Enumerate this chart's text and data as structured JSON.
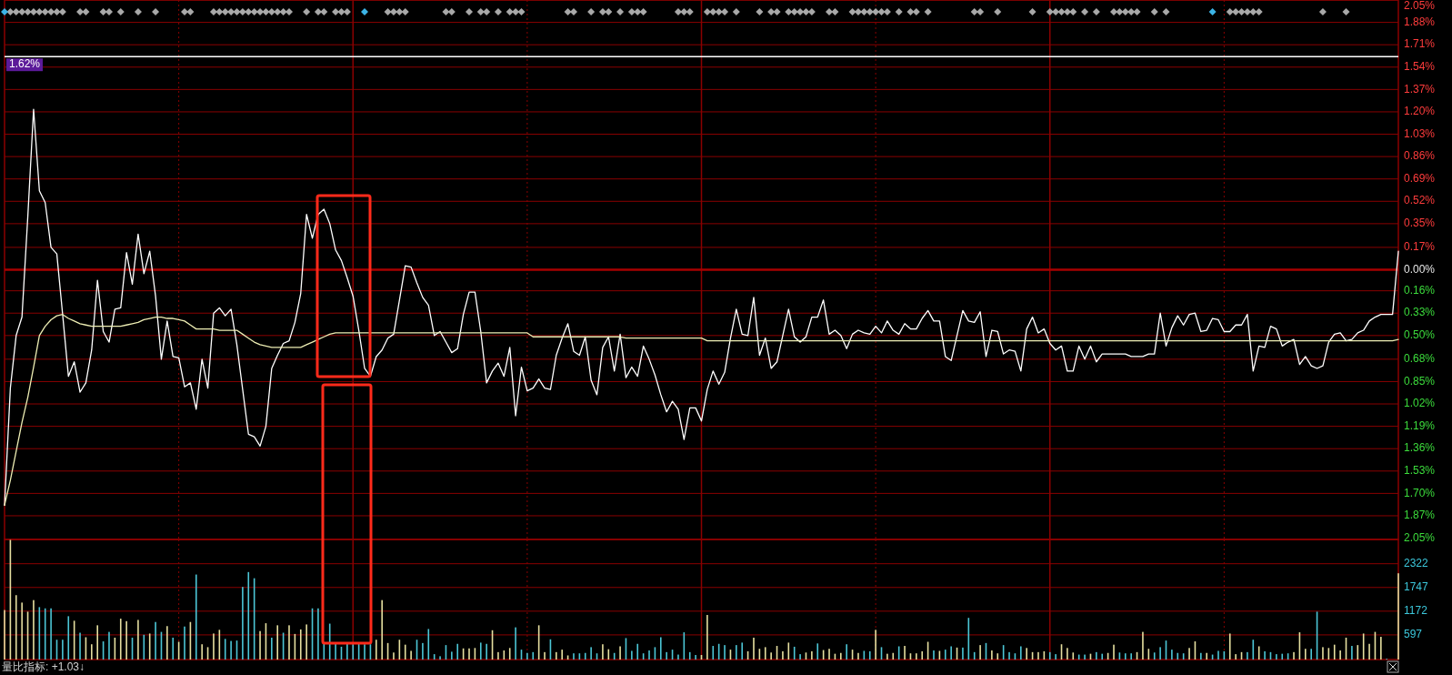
{
  "chart_data": [
    {
      "type": "line",
      "categories": [
        null,
        null,
        null,
        null,
        null,
        null,
        null,
        null,
        null,
        null,
        null,
        null,
        null,
        null,
        null,
        null,
        null,
        null,
        null,
        null,
        null,
        null,
        null,
        null,
        null,
        null,
        null,
        null,
        null,
        null,
        null,
        null,
        null,
        null,
        null,
        null,
        null,
        null,
        null,
        null,
        null,
        null,
        null,
        null,
        null,
        null,
        null,
        null,
        null,
        null,
        null,
        null,
        null,
        null,
        null,
        null,
        null,
        null,
        null,
        null,
        null,
        null,
        null,
        null,
        null,
        null,
        null,
        null,
        null,
        null,
        null,
        null,
        null,
        null,
        null,
        null,
        null,
        null,
        null,
        null,
        null,
        null,
        null,
        null,
        null,
        null,
        null,
        null,
        null,
        null,
        null,
        null,
        null,
        null,
        null,
        null,
        null,
        null,
        null,
        null,
        null,
        null,
        null,
        null,
        null,
        null,
        null,
        null,
        null,
        null,
        null,
        null,
        null,
        null,
        null,
        null,
        null,
        null,
        null,
        null,
        null,
        null,
        null,
        null,
        null,
        null,
        null,
        null,
        null,
        null,
        null,
        null,
        null,
        null,
        null,
        null,
        null,
        null,
        null,
        null,
        null,
        null,
        null,
        null,
        null,
        null,
        null,
        null,
        null,
        null,
        null,
        null,
        null,
        null,
        null,
        null,
        null,
        null,
        null,
        null,
        null,
        null,
        null,
        null,
        null,
        null,
        null,
        null,
        null,
        null,
        null,
        null,
        null,
        null,
        null,
        null,
        null,
        null,
        null,
        null,
        null,
        null,
        null,
        null,
        null,
        null,
        null,
        null,
        null,
        null,
        null,
        null,
        null,
        null,
        null,
        null,
        null,
        null,
        null,
        null,
        null,
        null,
        null,
        null,
        null,
        null,
        null,
        null,
        null,
        null,
        null,
        null,
        null,
        null,
        null,
        null,
        null,
        null,
        null,
        null,
        null,
        null,
        null,
        null,
        null,
        null,
        null,
        null,
        null,
        null,
        null,
        null,
        null,
        null,
        null,
        null,
        null,
        null,
        null,
        null,
        null
      ],
      "ylim": [
        -2.05,
        2.05
      ],
      "yticks": [
        {
          "value": 2.05,
          "label": "2.05%"
        },
        {
          "value": 1.88,
          "label": "1.88%"
        },
        {
          "value": 1.71,
          "label": "1.71%"
        },
        {
          "value": 1.54,
          "label": "1.54%"
        },
        {
          "value": 1.37,
          "label": "1.37%"
        },
        {
          "value": 1.2,
          "label": "1.20%"
        },
        {
          "value": 1.03,
          "label": "1.03%"
        },
        {
          "value": 0.86,
          "label": "0.86%"
        },
        {
          "value": 0.69,
          "label": "0.69%"
        },
        {
          "value": 0.52,
          "label": "0.52%"
        },
        {
          "value": 0.35,
          "label": "0.35%"
        },
        {
          "value": 0.17,
          "label": "0.17%"
        },
        {
          "value": 0,
          "label": "0.00%"
        },
        {
          "value": -0.16,
          "label": "0.16%"
        },
        {
          "value": -0.33,
          "label": "0.33%"
        },
        {
          "value": -0.5,
          "label": "0.50%"
        },
        {
          "value": -0.68,
          "label": "0.68%"
        },
        {
          "value": -0.85,
          "label": "0.85%"
        },
        {
          "value": -1.02,
          "label": "1.02%"
        },
        {
          "value": -1.19,
          "label": "1.19%"
        },
        {
          "value": -1.36,
          "label": "1.36%"
        },
        {
          "value": -1.53,
          "label": "1.53%"
        },
        {
          "value": -1.7,
          "label": "1.70%"
        },
        {
          "value": -1.87,
          "label": "1.87%"
        },
        {
          "value": -2.05,
          "label": "2.05%"
        }
      ],
      "tick_labels": "y",
      "grid": true,
      "ref_lines": [
        {
          "axis": "y",
          "value": 1.62,
          "label": "1.62%",
          "color": "#ffffff"
        },
        {
          "axis": "y",
          "value": 0,
          "color": "#a80000"
        }
      ],
      "series": [
        {
          "color": "#ffffff",
          "values": [
            -1.79,
            -0.9,
            -0.5,
            -0.36,
            0.4,
            1.22,
            0.6,
            0.51,
            0.17,
            0.12,
            -0.34,
            -0.81,
            -0.7,
            -0.93,
            -0.86,
            -0.61,
            -0.08,
            -0.47,
            -0.55,
            -0.3,
            -0.29,
            0.13,
            -0.11,
            0.27,
            -0.03,
            0.14,
            -0.2,
            -0.68,
            -0.39,
            -0.66,
            -0.67,
            -0.89,
            -0.86,
            -1.06,
            -0.68,
            -0.9,
            -0.33,
            -0.29,
            -0.35,
            -0.3,
            -0.57,
            -0.91,
            -1.25,
            -1.27,
            -1.34,
            -1.19,
            -0.75,
            -0.65,
            -0.56,
            -0.54,
            -0.4,
            -0.18,
            0.42,
            0.24,
            0.42,
            0.46,
            0.35,
            0.15,
            0.07,
            -0.06,
            -0.2,
            -0.46,
            -0.75,
            -0.81,
            -0.66,
            -0.61,
            -0.52,
            -0.49,
            -0.23,
            0.03,
            0.02,
            -0.1,
            -0.21,
            -0.27,
            -0.5,
            -0.47,
            -0.55,
            -0.63,
            -0.6,
            -0.34,
            -0.17,
            -0.17,
            -0.47,
            -0.86,
            -0.77,
            -0.71,
            -0.81,
            -0.59,
            -1.11,
            -0.74,
            -0.92,
            -0.9,
            -0.83,
            -0.9,
            -0.91,
            -0.65,
            -0.52,
            -0.41,
            -0.62,
            -0.65,
            -0.51,
            -0.84,
            -0.95,
            -0.59,
            -0.51,
            -0.77,
            -0.49,
            -0.82,
            -0.74,
            -0.81,
            -0.58,
            -0.68,
            -0.8,
            -0.95,
            -1.08,
            -1,
            -1.06,
            -1.29,
            -1.05,
            -1.05,
            -1.15,
            -0.91,
            -0.77,
            -0.87,
            -0.78,
            -0.52,
            -0.3,
            -0.49,
            -0.5,
            -0.21,
            -0.65,
            -0.52,
            -0.75,
            -0.7,
            -0.5,
            -0.3,
            -0.51,
            -0.55,
            -0.51,
            -0.36,
            -0.36,
            -0.23,
            -0.49,
            -0.46,
            -0.5,
            -0.6,
            -0.49,
            -0.46,
            -0.48,
            -0.49,
            -0.43,
            -0.48,
            -0.39,
            -0.46,
            -0.49,
            -0.41,
            -0.45,
            -0.45,
            -0.37,
            -0.31,
            -0.39,
            -0.39,
            -0.66,
            -0.69,
            -0.5,
            -0.31,
            -0.39,
            -0.4,
            -0.32,
            -0.66,
            -0.46,
            -0.47,
            -0.64,
            -0.61,
            -0.62,
            -0.77,
            -0.45,
            -0.36,
            -0.48,
            -0.45,
            -0.56,
            -0.61,
            -0.58,
            -0.77,
            -0.77,
            -0.58,
            -0.68,
            -0.58,
            -0.7,
            -0.64,
            -0.64,
            -0.64,
            -0.64,
            -0.64,
            -0.66,
            -0.66,
            -0.66,
            -0.64,
            -0.64,
            -0.33,
            -0.58,
            -0.44,
            -0.35,
            -0.42,
            -0.34,
            -0.33,
            -0.47,
            -0.46,
            -0.37,
            -0.38,
            -0.47,
            -0.47,
            -0.42,
            -0.42,
            -0.34,
            -0.77,
            -0.58,
            -0.59,
            -0.43,
            -0.45,
            -0.58,
            -0.55,
            -0.53,
            -0.72,
            -0.66,
            -0.73,
            -0.75,
            -0.73,
            -0.55,
            -0.49,
            -0.48,
            -0.54,
            -0.53,
            -0.48,
            -0.46,
            -0.39,
            -0.36,
            -0.34,
            -0.34,
            -0.34,
            0.14
          ]
        },
        {
          "color": "#eeeeb4",
          "values": [
            -1.79,
            -1.6,
            -1.38,
            -1.16,
            -0.97,
            -0.74,
            -0.5,
            -0.43,
            -0.38,
            -0.35,
            -0.34,
            -0.37,
            -0.39,
            -0.41,
            -0.42,
            -0.43,
            -0.43,
            -0.43,
            -0.43,
            -0.43,
            -0.43,
            -0.42,
            -0.41,
            -0.4,
            -0.38,
            -0.37,
            -0.36,
            -0.36,
            -0.37,
            -0.37,
            -0.38,
            -0.39,
            -0.42,
            -0.45,
            -0.45,
            -0.45,
            -0.45,
            -0.46,
            -0.46,
            -0.46,
            -0.46,
            -0.49,
            -0.52,
            -0.55,
            -0.57,
            -0.58,
            -0.59,
            -0.59,
            -0.59,
            -0.59,
            -0.59,
            -0.59,
            -0.57,
            -0.55,
            -0.53,
            -0.51,
            -0.49,
            -0.48,
            -0.48,
            -0.48,
            -0.48,
            -0.48,
            -0.48,
            -0.48,
            -0.48,
            -0.48,
            -0.48,
            -0.48,
            -0.48,
            -0.48,
            -0.48,
            -0.48,
            -0.48,
            -0.48,
            -0.48,
            -0.48,
            -0.48,
            -0.48,
            -0.48,
            -0.48,
            -0.48,
            -0.48,
            -0.48,
            -0.48,
            -0.48,
            -0.48,
            -0.48,
            -0.48,
            -0.48,
            -0.48,
            -0.48,
            -0.51,
            -0.51,
            -0.51,
            -0.51,
            -0.51,
            -0.51,
            -0.51,
            -0.51,
            -0.51,
            -0.51,
            -0.51,
            -0.51,
            -0.51,
            -0.51,
            -0.51,
            -0.51,
            -0.52,
            -0.52,
            -0.52,
            -0.52,
            -0.52,
            -0.52,
            -0.52,
            -0.52,
            -0.52,
            -0.52,
            -0.52,
            -0.52,
            -0.52,
            -0.52,
            -0.54,
            -0.54,
            -0.54,
            -0.54,
            -0.54,
            -0.54,
            -0.54,
            -0.54,
            -0.54,
            -0.54,
            -0.54,
            -0.54,
            -0.54,
            -0.54,
            -0.54,
            -0.54,
            -0.54,
            -0.54,
            -0.54,
            -0.54,
            -0.54,
            -0.54,
            -0.54,
            -0.54,
            -0.54,
            -0.54,
            -0.54,
            -0.54,
            -0.54,
            -0.54,
            -0.54,
            -0.54,
            -0.54,
            -0.54,
            -0.54,
            -0.54,
            -0.54,
            -0.54,
            -0.54,
            -0.54,
            -0.54,
            -0.54,
            -0.54,
            -0.54,
            -0.54,
            -0.54,
            -0.54,
            -0.54,
            -0.54,
            -0.54,
            -0.54,
            -0.54,
            -0.54,
            -0.54,
            -0.54,
            -0.54,
            -0.54,
            -0.54,
            -0.54,
            -0.54,
            -0.54,
            -0.54,
            -0.54,
            -0.54,
            -0.54,
            -0.54,
            -0.54,
            -0.54,
            -0.54,
            -0.54,
            -0.54,
            -0.54,
            -0.54,
            -0.54,
            -0.54,
            -0.54,
            -0.54,
            -0.54,
            -0.54,
            -0.54,
            -0.54,
            -0.54,
            -0.54,
            -0.54,
            -0.54,
            -0.54,
            -0.54,
            -0.54,
            -0.54,
            -0.54,
            -0.54,
            -0.54,
            -0.54,
            -0.54,
            -0.54,
            -0.54,
            -0.54,
            -0.54,
            -0.54,
            -0.54,
            -0.54,
            -0.54,
            -0.54,
            -0.54,
            -0.54,
            -0.54,
            -0.54,
            -0.54,
            -0.54,
            -0.54,
            -0.54,
            -0.54,
            -0.54,
            -0.54,
            -0.54,
            -0.54,
            -0.54,
            -0.54,
            -0.54,
            -0.53
          ]
        },
        {
          "type": "scatter",
          "marker": "diamond",
          "color": "#a8a8a8",
          "values": [
            null,
            1.96,
            1.96,
            1.96,
            1.96,
            1.96,
            1.96,
            1.96,
            1.96,
            1.96,
            1.96,
            null,
            null,
            1.96,
            1.96,
            null,
            null,
            1.96,
            1.96,
            null,
            1.96,
            null,
            null,
            1.96,
            null,
            null,
            1.96,
            null,
            null,
            null,
            null,
            1.96,
            1.96,
            null,
            null,
            null,
            1.96,
            1.96,
            1.96,
            1.96,
            1.96,
            1.96,
            1.96,
            1.96,
            1.96,
            1.96,
            1.96,
            1.96,
            1.96,
            1.96,
            null,
            null,
            1.96,
            null,
            1.96,
            1.96,
            null,
            1.96,
            1.96,
            1.96,
            null,
            null,
            null,
            null,
            null,
            null,
            1.96,
            1.96,
            1.96,
            1.96,
            null,
            null,
            null,
            null,
            null,
            null,
            1.96,
            1.96,
            null,
            null,
            1.96,
            null,
            1.96,
            1.96,
            null,
            1.96,
            null,
            1.96,
            1.96,
            1.96,
            null,
            null,
            null,
            null,
            null,
            null,
            null,
            1.96,
            1.96,
            null,
            null,
            1.96,
            null,
            1.96,
            1.96,
            null,
            1.96,
            null,
            1.96,
            1.96,
            1.96,
            null,
            null,
            null,
            null,
            null,
            1.96,
            1.96,
            1.96,
            null,
            null,
            1.96,
            1.96,
            1.96,
            1.96,
            null,
            1.96,
            null,
            null,
            null,
            1.96,
            null,
            1.96,
            1.96,
            null,
            1.96,
            1.96,
            1.96,
            1.96,
            1.96,
            null,
            null,
            1.96,
            1.96,
            null,
            null,
            1.96,
            1.96,
            1.96,
            1.96,
            1.96,
            1.96,
            1.96,
            null,
            1.96,
            null,
            1.96,
            1.96,
            null,
            1.96,
            null,
            null,
            null,
            null,
            null,
            null,
            null,
            1.96,
            1.96,
            null,
            null,
            1.96,
            null,
            null,
            null,
            null,
            null,
            1.96,
            null,
            null,
            1.96,
            1.96,
            1.96,
            1.96,
            1.96,
            null,
            1.96,
            null,
            1.96,
            null,
            null,
            1.96,
            1.96,
            1.96,
            1.96,
            1.96,
            null,
            null,
            1.96,
            null,
            1.96,
            null,
            null,
            null,
            null,
            null,
            null,
            null,
            null,
            null,
            null,
            1.96,
            1.96,
            1.96,
            1.96,
            1.96,
            1.96,
            null,
            null,
            null,
            null,
            null,
            null,
            null,
            null,
            null,
            null,
            1.96,
            null,
            null,
            null,
            1.96,
            null,
            null,
            null,
            null,
            null,
            null,
            null,
            null,
            null
          ]
        },
        {
          "type": "scatter",
          "marker": "diamond",
          "color": "#3cb4e6",
          "values": [
            1.96,
            null,
            null,
            null,
            null,
            null,
            null,
            null,
            null,
            null,
            null,
            null,
            null,
            null,
            null,
            null,
            null,
            null,
            null,
            null,
            null,
            null,
            null,
            null,
            null,
            null,
            null,
            null,
            null,
            null,
            null,
            null,
            null,
            null,
            null,
            null,
            null,
            null,
            null,
            null,
            null,
            null,
            null,
            null,
            null,
            null,
            null,
            null,
            null,
            null,
            null,
            null,
            null,
            null,
            null,
            null,
            null,
            null,
            null,
            null,
            null,
            null,
            1.96,
            null,
            null,
            null,
            null,
            null,
            null,
            null,
            null,
            null,
            null,
            null,
            null,
            null,
            null,
            null,
            null,
            null,
            null,
            null,
            null,
            null,
            null,
            null,
            null,
            null,
            null,
            null,
            null,
            null,
            null,
            null,
            null,
            null,
            null,
            null,
            null,
            null,
            null,
            null,
            null,
            null,
            null,
            null,
            null,
            null,
            null,
            null,
            null,
            null,
            null,
            null,
            null,
            null,
            null,
            null,
            null,
            null,
            null,
            null,
            null,
            null,
            null,
            null,
            null,
            null,
            null,
            null,
            null,
            null,
            null,
            null,
            null,
            null,
            null,
            null,
            null,
            null,
            null,
            null,
            null,
            null,
            null,
            null,
            null,
            null,
            null,
            null,
            null,
            null,
            null,
            null,
            null,
            null,
            null,
            null,
            null,
            null,
            null,
            null,
            null,
            null,
            null,
            null,
            null,
            null,
            null,
            null,
            null,
            null,
            null,
            null,
            null,
            null,
            null,
            null,
            null,
            null,
            null,
            null,
            null,
            null,
            null,
            null,
            null,
            null,
            null,
            null,
            null,
            null,
            null,
            null,
            null,
            null,
            null,
            null,
            null,
            null,
            null,
            null,
            null,
            null,
            null,
            null,
            null,
            null,
            1.96,
            null,
            null,
            null,
            null,
            null,
            null,
            null,
            null,
            null,
            null,
            null,
            null,
            null,
            null,
            null,
            null,
            null,
            null,
            null,
            null,
            null,
            null,
            null,
            null,
            null,
            null,
            null,
            null,
            null,
            null,
            null,
            null
          ]
        }
      ]
    },
    {
      "type": "bar",
      "categories": [
        null,
        null,
        null,
        null,
        null,
        null,
        null,
        null,
        null,
        null,
        null,
        null,
        null,
        null,
        null,
        null,
        null,
        null,
        null,
        null,
        null,
        null,
        null,
        null,
        null,
        null,
        null,
        null,
        null,
        null,
        null,
        null,
        null,
        null,
        null,
        null,
        null,
        null,
        null,
        null,
        null,
        null,
        null,
        null,
        null,
        null,
        null,
        null,
        null,
        null,
        null,
        null,
        null,
        null,
        null,
        null,
        null,
        null,
        null,
        null,
        null,
        null,
        null,
        null,
        null,
        null,
        null,
        null,
        null,
        null,
        null,
        null,
        null,
        null,
        null,
        null,
        null,
        null,
        null,
        null,
        null,
        null,
        null,
        null,
        null,
        null,
        null,
        null,
        null,
        null,
        null,
        null,
        null,
        null,
        null,
        null,
        null,
        null,
        null,
        null,
        null,
        null,
        null,
        null,
        null,
        null,
        null,
        null,
        null,
        null,
        null,
        null,
        null,
        null,
        null,
        null,
        null,
        null,
        null,
        null,
        null,
        null,
        null,
        null,
        null,
        null,
        null,
        null,
        null,
        null,
        null,
        null,
        null,
        null,
        null,
        null,
        null,
        null,
        null,
        null,
        null,
        null,
        null,
        null,
        null,
        null,
        null,
        null,
        null,
        null,
        null,
        null,
        null,
        null,
        null,
        null,
        null,
        null,
        null,
        null,
        null,
        null,
        null,
        null,
        null,
        null,
        null,
        null,
        null,
        null,
        null,
        null,
        null,
        null,
        null,
        null,
        null,
        null,
        null,
        null,
        null,
        null,
        null,
        null,
        null,
        null,
        null,
        null,
        null,
        null,
        null,
        null,
        null,
        null,
        null,
        null,
        null,
        null,
        null,
        null,
        null,
        null,
        null,
        null,
        null,
        null,
        null,
        null,
        null,
        null,
        null,
        null,
        null,
        null,
        null,
        null,
        null,
        null,
        null,
        null,
        null,
        null,
        null,
        null,
        null,
        null,
        null,
        null,
        null,
        null,
        null,
        null,
        null,
        null,
        null,
        null,
        null,
        null,
        null,
        null,
        null
      ],
      "ylim": [
        0,
        2910
      ],
      "yticks": [
        597,
        1172,
        1747,
        2322
      ],
      "tick_labels": "y",
      "grid": true,
      "annotations": [
        "量比指标: +1.03↓"
      ],
      "values": [
        1200,
        2900,
        1560,
        1380,
        1160,
        1440,
        1270,
        1240,
        1240,
        480,
        480,
        1050,
        940,
        650,
        540,
        370,
        830,
        440,
        670,
        530,
        990,
        930,
        530,
        960,
        600,
        630,
        910,
        670,
        810,
        530,
        430,
        800,
        910,
        2060,
        370,
        300,
        630,
        720,
        500,
        450,
        460,
        1760,
        2120,
        1970,
        690,
        880,
        530,
        830,
        650,
        830,
        620,
        730,
        850,
        1240,
        1240,
        390,
        870,
        390,
        310,
        390,
        370,
        390,
        370,
        370,
        480,
        1440,
        400,
        170,
        480,
        360,
        210,
        480,
        400,
        740,
        130,
        80,
        350,
        190,
        380,
        270,
        270,
        280,
        410,
        380,
        710,
        180,
        220,
        280,
        780,
        240,
        160,
        180,
        830,
        180,
        490,
        180,
        240,
        100,
        150,
        150,
        160,
        300,
        150,
        370,
        250,
        160,
        320,
        520,
        210,
        380,
        150,
        220,
        300,
        540,
        180,
        240,
        120,
        660,
        180,
        110,
        110,
        1080,
        330,
        380,
        350,
        240,
        350,
        410,
        200,
        530,
        260,
        300,
        170,
        330,
        200,
        410,
        310,
        130,
        170,
        200,
        390,
        230,
        260,
        140,
        160,
        370,
        240,
        160,
        210,
        200,
        720,
        300,
        140,
        160,
        320,
        330,
        150,
        150,
        200,
        430,
        220,
        210,
        240,
        320,
        290,
        290,
        1010,
        180,
        350,
        400,
        220,
        150,
        350,
        180,
        150,
        320,
        280,
        180,
        180,
        200,
        180,
        130,
        370,
        280,
        170,
        120,
        120,
        140,
        180,
        140,
        160,
        360,
        170,
        150,
        150,
        180,
        670,
        260,
        170,
        300,
        460,
        240,
        160,
        150,
        280,
        440,
        160,
        160,
        120,
        210,
        200,
        630,
        130,
        180,
        180,
        480,
        320,
        200,
        180,
        130,
        140,
        150,
        180,
        660,
        260,
        260,
        1160,
        300,
        280,
        360,
        220,
        530,
        330,
        350,
        630,
        380,
        670,
        550,
        20,
        null,
        2090
      ],
      "colors": [
        "#e6dfa0",
        "#e6dfa0",
        "#e6dfa0",
        "#e6dfa0",
        "#e6dfa0",
        "#e6dfa0",
        "#4cc6d6",
        "#4cc6d6",
        "#4cc6d6",
        "#4cc6d6",
        "#4cc6d6",
        "#4cc6d6",
        "#e6dfa0",
        "#4cc6d6",
        "#e6dfa0",
        "#e6dfa0",
        "#e6dfa0",
        "#4cc6d6",
        "#4cc6d6",
        "#e6dfa0",
        "#e6dfa0",
        "#e6dfa0",
        "#4cc6d6",
        "#e6dfa0",
        "#4cc6d6",
        "#e6dfa0",
        "#4cc6d6",
        "#4cc6d6",
        "#e6dfa0",
        "#4cc6d6",
        "#e6dfa0",
        "#4cc6d6",
        "#e6dfa0",
        "#4cc6d6",
        "#e6dfa0",
        "#e6dfa0",
        "#e6dfa0",
        "#e6dfa0",
        "#4cc6d6",
        "#4cc6d6",
        "#4cc6d6",
        "#4cc6d6",
        "#4cc6d6",
        "#4cc6d6",
        "#e6dfa0",
        "#e6dfa0",
        "#4cc6d6",
        "#e6dfa0",
        "#4cc6d6",
        "#e6dfa0",
        "#e6dfa0",
        "#e6dfa0",
        "#e6dfa0",
        "#4cc6d6",
        "#4cc6d6",
        "#4cc6d6",
        "#4cc6d6",
        "#4cc6d6",
        "#4cc6d6",
        "#4cc6d6",
        "#4cc6d6",
        "#4cc6d6",
        "#4cc6d6",
        "#4cc6d6",
        "#e6dfa0",
        "#e6dfa0",
        "#e6dfa0",
        "#e6dfa0",
        "#e6dfa0",
        "#e6dfa0",
        "#e6dfa0",
        "#4cc6d6",
        "#4cc6d6",
        "#4cc6d6",
        "#4cc6d6",
        "#4cc6d6",
        "#4cc6d6",
        "#4cc6d6",
        "#4cc6d6",
        "#e6dfa0",
        "#e6dfa0",
        "#e6dfa0",
        "#4cc6d6",
        "#4cc6d6",
        "#e6dfa0",
        "#e6dfa0",
        "#e6dfa0",
        "#e6dfa0",
        "#4cc6d6",
        "#4cc6d6",
        "#4cc6d6",
        "#4cc6d6",
        "#e6dfa0",
        "#e6dfa0",
        "#4cc6d6",
        "#e6dfa0",
        "#e6dfa0",
        "#e6dfa0",
        "#4cc6d6",
        "#4cc6d6",
        "#4cc6d6",
        "#4cc6d6",
        "#4cc6d6",
        "#e6dfa0",
        "#e6dfa0",
        "#4cc6d6",
        "#e6dfa0",
        "#4cc6d6",
        "#4cc6d6",
        "#4cc6d6",
        "#4cc6d6",
        "#4cc6d6",
        "#4cc6d6",
        "#4cc6d6",
        "#4cc6d6",
        "#4cc6d6",
        "#4cc6d6",
        "#4cc6d6",
        "#4cc6d6",
        "#4cc6d6",
        "#e6dfa0",
        "#e6dfa0",
        "#4cc6d6",
        "#4cc6d6",
        "#4cc6d6",
        "#e6dfa0",
        "#4cc6d6",
        "#4cc6d6",
        "#e6dfa0",
        "#e6dfa0",
        "#e6dfa0",
        "#e6dfa0",
        "#e6dfa0",
        "#e6dfa0",
        "#e6dfa0",
        "#e6dfa0",
        "#4cc6d6",
        "#4cc6d6",
        "#e6dfa0",
        "#e6dfa0",
        "#4cc6d6",
        "#e6dfa0",
        "#e6dfa0",
        "#e6dfa0",
        "#e6dfa0",
        "#4cc6d6",
        "#e6dfa0",
        "#e6dfa0",
        "#4cc6d6",
        "#4cc6d6",
        "#e6dfa0",
        "#4cc6d6",
        "#e6dfa0",
        "#e6dfa0",
        "#4cc6d6",
        "#e6dfa0",
        "#e6dfa0",
        "#e6dfa0",
        "#e6dfa0",
        "#e6dfa0",
        "#4cc6d6",
        "#e6dfa0",
        "#4cc6d6",
        "#4cc6d6",
        "#e6dfa0",
        "#4cc6d6",
        "#4cc6d6",
        "#4cc6d6",
        "#e6dfa0",
        "#4cc6d6",
        "#e6dfa0",
        "#e6dfa0",
        "#4cc6d6",
        "#4cc6d6",
        "#4cc6d6",
        "#4cc6d6",
        "#e6dfa0",
        "#e6dfa0",
        "#e6dfa0",
        "#e6dfa0",
        "#4cc6d6",
        "#4cc6d6",
        "#e6dfa0",
        "#e6dfa0",
        "#e6dfa0",
        "#4cc6d6",
        "#4cc6d6",
        "#e6dfa0",
        "#4cc6d6",
        "#4cc6d6",
        "#e6dfa0",
        "#e6dfa0",
        "#4cc6d6",
        "#4cc6d6",
        "#4cc6d6",
        "#e6dfa0",
        "#e6dfa0",
        "#e6dfa0",
        "#4cc6d6",
        "#4cc6d6",
        "#4cc6d6",
        "#4cc6d6",
        "#4cc6d6",
        "#4cc6d6",
        "#e6dfa0",
        "#e6dfa0",
        "#4cc6d6",
        "#e6dfa0",
        "#4cc6d6",
        "#4cc6d6",
        "#4cc6d6",
        "#e6dfa0",
        "#e6dfa0",
        "#e6dfa0",
        "#4cc6d6",
        "#4cc6d6",
        "#e6dfa0",
        "#4cc6d6",
        "#4cc6d6",
        "#4cc6d6",
        "#4cc6d6",
        "#4cc6d6",
        "#e6dfa0",
        "#e6dfa0",
        "#e6dfa0",
        "#4cc6d6",
        "#4cc6d6",
        "#e6dfa0",
        "#e6dfa0",
        "#e6dfa0",
        "#e6dfa0",
        "#e6dfa0",
        "#4cc6d6",
        "#e6dfa0",
        "#e6dfa0",
        "#e6dfa0",
        "#e6dfa0",
        "#e6dfa0",
        "#4cc6d6",
        null,
        "#e6dfa0"
      ]
    }
  ]
}
